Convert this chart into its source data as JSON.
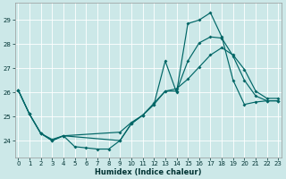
{
  "xlabel": "Humidex (Indice chaleur)",
  "bg_color": "#cce8e8",
  "grid_color": "#ffffff",
  "line_color": "#006666",
  "line1_x": [
    0,
    1,
    2,
    3,
    4,
    5,
    6,
    7,
    8,
    9,
    10,
    11,
    12,
    13,
    14,
    15,
    16,
    17,
    18,
    19,
    20,
    21,
    22,
    23
  ],
  "line1_y": [
    26.1,
    25.1,
    24.3,
    24.0,
    24.2,
    23.75,
    23.7,
    23.65,
    23.65,
    24.0,
    24.7,
    25.05,
    25.5,
    27.3,
    26.0,
    28.85,
    29.0,
    29.3,
    28.3,
    26.5,
    25.5,
    25.6,
    25.65,
    25.65
  ],
  "line2_x": [
    0,
    1,
    2,
    3,
    4,
    9,
    10,
    11,
    12,
    13,
    14,
    15,
    16,
    17,
    18,
    19,
    20,
    21,
    22,
    23
  ],
  "line2_y": [
    26.1,
    25.1,
    24.3,
    24.0,
    24.2,
    24.0,
    24.7,
    25.05,
    25.5,
    26.05,
    26.05,
    27.3,
    28.05,
    28.3,
    28.25,
    27.5,
    26.5,
    25.85,
    25.65,
    25.65
  ],
  "line3_x": [
    0,
    1,
    2,
    3,
    4,
    9,
    10,
    11,
    12,
    13,
    14,
    15,
    16,
    17,
    18,
    19,
    20,
    21,
    22,
    23
  ],
  "line3_y": [
    26.1,
    25.1,
    24.3,
    24.05,
    24.2,
    24.35,
    24.75,
    25.05,
    25.55,
    26.05,
    26.15,
    26.55,
    27.05,
    27.55,
    27.85,
    27.55,
    26.95,
    26.05,
    25.75,
    25.75
  ],
  "xlim": [
    -0.3,
    23.3
  ],
  "ylim": [
    23.3,
    29.7
  ],
  "yticks": [
    24,
    25,
    26,
    27,
    28,
    29
  ],
  "xticks": [
    0,
    1,
    2,
    3,
    4,
    5,
    6,
    7,
    8,
    9,
    10,
    11,
    12,
    13,
    14,
    15,
    16,
    17,
    18,
    19,
    20,
    21,
    22,
    23
  ]
}
